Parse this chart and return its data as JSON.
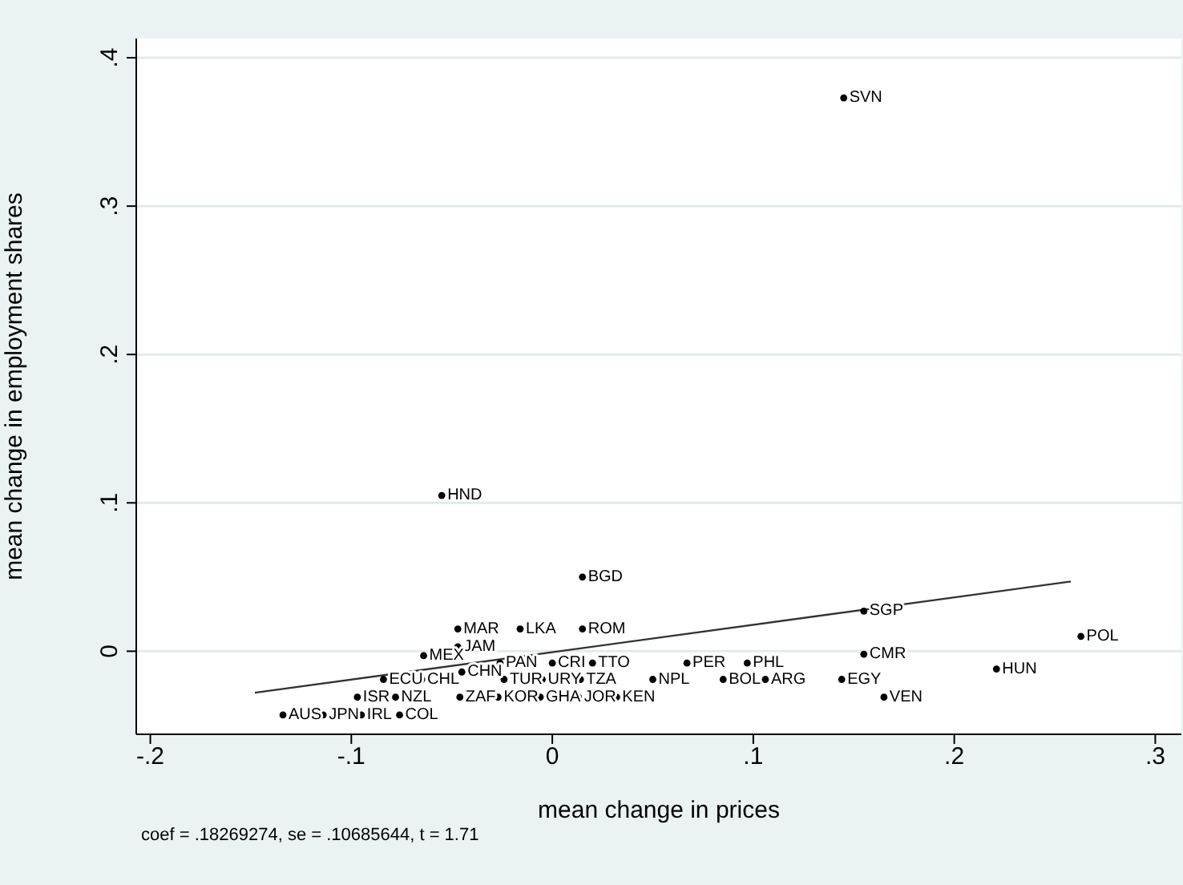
{
  "chart_data": {
    "type": "scatter",
    "xlabel": "mean change in prices",
    "ylabel": "mean change in employment shares",
    "annotations": [
      "coef = .18269274, se = .10685644, t = 1.71"
    ],
    "xlim": [
      -0.207,
      0.313
    ],
    "ylim": [
      -0.056,
      0.413
    ],
    "xticks": [
      {
        "value": -0.2,
        "label": "-.2"
      },
      {
        "value": -0.1,
        "label": "-.1"
      },
      0,
      {
        "value": 0.1,
        "label": ".1"
      },
      {
        "value": 0.2,
        "label": ".2"
      },
      {
        "value": 0.3,
        "label": ".3"
      }
    ],
    "yticks": [
      0,
      {
        "value": 0.1,
        "label": ".1"
      },
      {
        "value": 0.2,
        "label": ".2"
      },
      {
        "value": 0.3,
        "label": ".3"
      },
      {
        "value": 0.4,
        "label": ".4"
      }
    ],
    "grid": "y",
    "legend": false,
    "marker": "circle",
    "series": [
      {
        "color": "#000000",
        "x": [
          0.145,
          -0.055,
          0.015,
          0.015,
          -0.016,
          -0.047,
          -0.047,
          -0.064,
          -0.045,
          -0.026,
          0.0,
          0.02,
          0.067,
          0.097,
          -0.084,
          -0.065,
          -0.024,
          -0.005,
          0.014,
          0.05,
          0.085,
          0.106,
          0.144,
          -0.097,
          -0.078,
          -0.046,
          -0.027,
          -0.006,
          0.013,
          0.032,
          0.165,
          -0.134,
          -0.114,
          -0.095,
          -0.076,
          0.155,
          0.155,
          0.221,
          0.263
        ],
        "values": [
          0.373,
          0.105,
          0.05,
          0.015,
          0.015,
          0.015,
          0.003,
          -0.003,
          -0.014,
          -0.008,
          -0.008,
          -0.008,
          -0.008,
          -0.008,
          -0.019,
          -0.019,
          -0.019,
          -0.019,
          -0.019,
          -0.019,
          -0.019,
          -0.019,
          -0.019,
          -0.031,
          -0.031,
          -0.031,
          -0.031,
          -0.031,
          -0.031,
          -0.031,
          -0.031,
          -0.043,
          -0.043,
          -0.043,
          -0.043,
          -0.002,
          0.027,
          -0.012,
          0.01
        ],
        "value_labels": [
          "SVN",
          "HND",
          "BGD",
          "ROM",
          "LKA",
          "MAR",
          "JAM",
          "MEX",
          "CHN",
          "PAN",
          "CRI",
          "TTO",
          "PER",
          "PHL",
          "ECU",
          "CHL",
          "TUR",
          "URY",
          "TZA",
          "NPL",
          "BOL",
          "ARG",
          "EGY",
          "ISR",
          "NZL",
          "ZAF",
          "KOR",
          "GHA",
          "JOR",
          "KEN",
          "VEN",
          "AUS",
          "JPN",
          "IRL",
          "COL",
          "CMR",
          "SGP",
          "HUN",
          "POL"
        ]
      },
      {
        "type": "line",
        "marker": "none",
        "color": "#333333",
        "x": [
          -0.148,
          0.258
        ],
        "values": [
          -0.028,
          0.047
        ]
      }
    ]
  }
}
